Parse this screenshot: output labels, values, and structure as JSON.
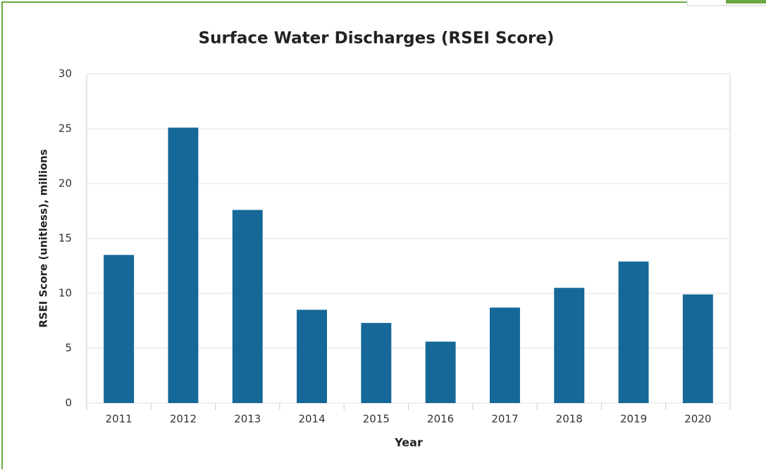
{
  "chart_data": {
    "type": "bar",
    "title": "Surface Water Discharges (RSEI Score)",
    "y_label": "RSEI Score (unitless), millions",
    "x_label": "Year",
    "categories": [
      "2011",
      "2012",
      "2013",
      "2014",
      "2015",
      "2016",
      "2017",
      "2018",
      "2019",
      "2020"
    ],
    "values": [
      13.5,
      25.1,
      17.6,
      8.5,
      7.3,
      5.6,
      8.7,
      10.5,
      12.9,
      9.9
    ],
    "color": "#156897",
    "ylim": [
      0,
      30
    ],
    "yticks": [
      0,
      5,
      10,
      15,
      20,
      25,
      30
    ],
    "grid": true
  }
}
